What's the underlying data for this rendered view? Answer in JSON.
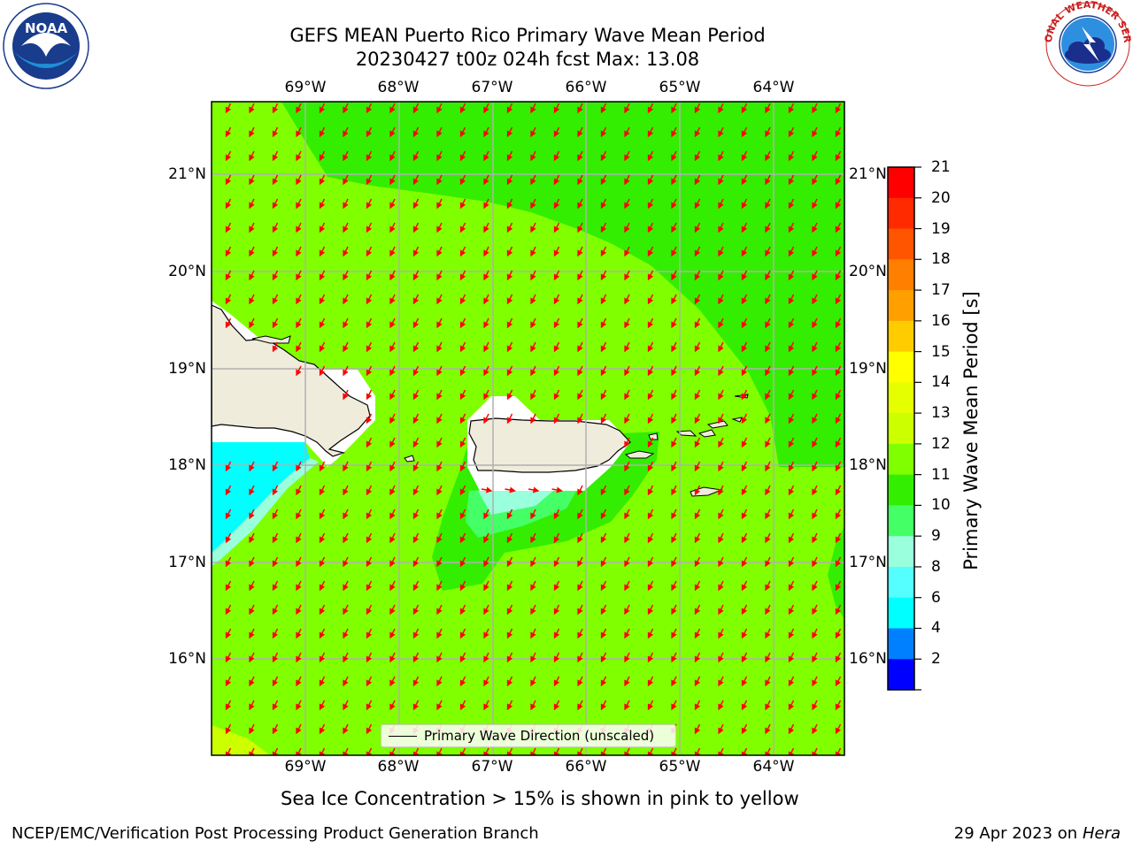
{
  "header": {
    "title_line1": "GEFS MEAN Puerto Rico Primary Wave Mean Period",
    "title_line2": "20230427 t00z 024h fcst   Max: 13.08"
  },
  "logos": {
    "left": "NOAA",
    "left_ring_text": "NATIONAL OCEANIC AND ATMOSPHERIC ADMINISTRATION · U.S. DEPARTMENT OF COMMERCE",
    "right_ring_text": "NATIONAL WEATHER SERVICE"
  },
  "map": {
    "lon_labels": [
      "69°W",
      "68°W",
      "67°W",
      "66°W",
      "65°W",
      "64°W"
    ],
    "lat_labels": [
      "21°N",
      "20°N",
      "19°N",
      "18°N",
      "17°N",
      "16°N"
    ],
    "colors": {
      "ocean_main": "#80ff00",
      "ocean_12": "#33ee00",
      "ocean_10": "#44ff66",
      "ocean_9": "#99ffdd",
      "ocean_7": "#00ffff",
      "ocean_14": "#ccff00",
      "land": "#efecdc",
      "arrow": "#ff0000",
      "grid": "#b0b0b0"
    }
  },
  "colorbar": {
    "label": "Primary Wave Mean Period [s]",
    "ticks": [
      "21",
      "20",
      "19",
      "18",
      "17",
      "16",
      "15",
      "14",
      "13",
      "12",
      "11",
      "10",
      "9",
      "8",
      "6",
      "4",
      "2"
    ],
    "colors": [
      "#ff0000",
      "#ff2a00",
      "#ff5500",
      "#ff7f00",
      "#ff9f00",
      "#ffcc00",
      "#ffff00",
      "#e6ff00",
      "#ccff00",
      "#80ff00",
      "#33ee00",
      "#44ff66",
      "#99ffdd",
      "#55ffff",
      "#00ffff",
      "#0080ff",
      "#0000ff"
    ]
  },
  "legend": {
    "label": "Primary Wave Direction (unscaled)"
  },
  "footer": {
    "note": "Sea Ice Concentration > 15% is shown in pink to yellow",
    "left": "NCEP/EMC/Verification Post Processing Product Generation Branch",
    "right_date": "29 Apr 2023 on ",
    "right_host": "Hera"
  }
}
